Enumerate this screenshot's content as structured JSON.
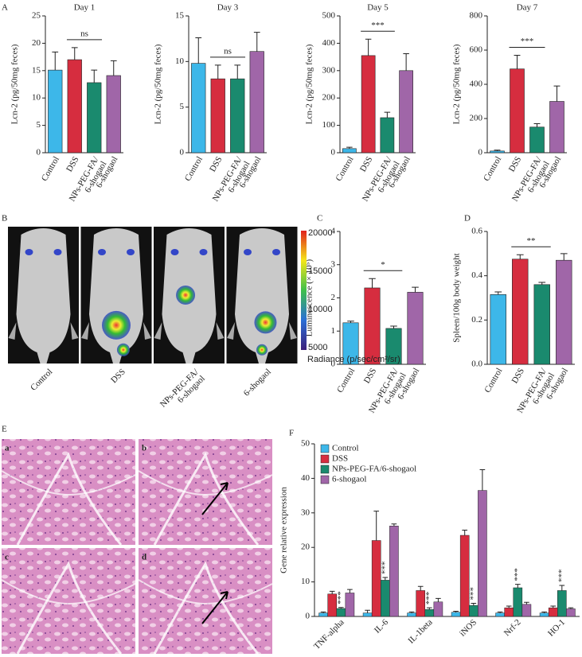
{
  "panel_labels": [
    "A",
    "B",
    "C",
    "D",
    "E",
    "F"
  ],
  "imaging": {
    "labels": [
      "Control",
      "DSS",
      "NPs-PEG-FA/6-shogaol",
      "6-shogaol"
    ],
    "colorbar_ticks": [
      "20000",
      "15000",
      "10000",
      "5000"
    ],
    "colorbar_title": "Radiance (p/sec/cm²/sr)"
  },
  "histology": {
    "labels": [
      "a",
      "b",
      "c",
      "d"
    ]
  },
  "chart_data": [
    {
      "type": "bar",
      "title": "Day 1",
      "y_label": "Lcn-2 (pg/50mg feces)",
      "categories": [
        "Control",
        "DSS",
        "NPs-PEG-FA/6-shogaol",
        "6-shogaol"
      ],
      "values": [
        15.1,
        17,
        12.8,
        14.1
      ],
      "errors": [
        3.3,
        2.2,
        2.3,
        2.7
      ],
      "colors": [
        "#3db7e9",
        "#d62d3f",
        "#1a8a6e",
        "#a066a8"
      ],
      "ylim": [
        0,
        25
      ],
      "yticks": [
        0,
        5,
        10,
        15,
        20,
        25
      ],
      "significance": "ns"
    },
    {
      "type": "bar",
      "title": "Day 3",
      "y_label": "Lcn-2 (pg/50mg feces)",
      "categories": [
        "Control",
        "DSS",
        "NPs-PEG-FA/6-shogaol",
        "6-shogaol"
      ],
      "values": [
        9.8,
        8.1,
        8.1,
        11.1
      ],
      "errors": [
        2.8,
        1.5,
        1.5,
        2.1
      ],
      "colors": [
        "#3db7e9",
        "#d62d3f",
        "#1a8a6e",
        "#a066a8"
      ],
      "ylim": [
        0,
        15
      ],
      "yticks": [
        0,
        5,
        10,
        15
      ],
      "significance": "ns"
    },
    {
      "type": "bar",
      "title": "Day 5",
      "y_label": "Lcn-2 (pg/50mg feces)",
      "categories": [
        "Control",
        "DSS",
        "NPs-PEG-FA/6-shogaol",
        "6-shogaol"
      ],
      "values": [
        15,
        355,
        128,
        300
      ],
      "errors": [
        5,
        60,
        20,
        62
      ],
      "colors": [
        "#3db7e9",
        "#d62d3f",
        "#1a8a6e",
        "#a066a8"
      ],
      "ylim": [
        0,
        500
      ],
      "yticks": [
        0,
        100,
        200,
        300,
        400,
        500
      ],
      "significance": "***"
    },
    {
      "type": "bar",
      "title": "Day 7",
      "y_label": "Lcn-2 (pg/50mg feces)",
      "categories": [
        "Control",
        "DSS",
        "NPs-PEG-FA/6-shogaol",
        "6-shogaol"
      ],
      "values": [
        10,
        490,
        150,
        300
      ],
      "errors": [
        5,
        80,
        20,
        90
      ],
      "colors": [
        "#3db7e9",
        "#d62d3f",
        "#1a8a6e",
        "#a066a8"
      ],
      "ylim": [
        0,
        800
      ],
      "yticks": [
        0,
        200,
        400,
        600,
        800
      ],
      "significance": "***"
    },
    {
      "type": "bar",
      "y_label": "Luminescence (× 10⁵)",
      "categories": [
        "Control",
        "DSS",
        "NPs-PEG-FA/6-shogaol",
        "6-shogaol"
      ],
      "values": [
        1.25,
        2.3,
        1.08,
        2.17
      ],
      "errors": [
        0.05,
        0.28,
        0.07,
        0.15
      ],
      "colors": [
        "#3db7e9",
        "#d62d3f",
        "#1a8a6e",
        "#a066a8"
      ],
      "ylim": [
        0,
        4
      ],
      "yticks": [
        0,
        1,
        2,
        3,
        4
      ],
      "significance": "*"
    },
    {
      "type": "bar",
      "y_label": "Spleen/100g body weight",
      "categories": [
        "Control",
        "DSS",
        "NPs-PEG-FA/6-shogaol",
        "6-shogaol"
      ],
      "values": [
        0.315,
        0.475,
        0.36,
        0.47
      ],
      "errors": [
        0.012,
        0.02,
        0.01,
        0.03
      ],
      "colors": [
        "#3db7e9",
        "#d62d3f",
        "#1a8a6e",
        "#a066a8"
      ],
      "ylim": [
        0,
        0.6
      ],
      "yticks": [
        {
          "value": 0,
          "label": "0.0"
        },
        0.2,
        0.4,
        0.6
      ],
      "significance": "**"
    },
    {
      "type": "grouped_bar",
      "y_label": "Gene relative expression",
      "categories": [
        "TNF-alpha",
        "IL-6",
        "IL-1beta",
        "iNOS",
        "Nrf-2",
        "HO-1"
      ],
      "series": [
        {
          "name": "Control",
          "color": "#3db7e9",
          "values": [
            1,
            1,
            1,
            1.2,
            1,
            1
          ],
          "errors": [
            0.3,
            0.8,
            0.3,
            0.3,
            0.3,
            0.3
          ]
        },
        {
          "name": "DSS",
          "color": "#d62d3f",
          "values": [
            6.5,
            22,
            7.5,
            23.5,
            2.5,
            2.5
          ],
          "errors": [
            0.8,
            8.5,
            1.2,
            1.5,
            0.5,
            0.5
          ]
        },
        {
          "name": "NPs-PEG-FA/6-shogaol",
          "color": "#1a8a6e",
          "values": [
            2.3,
            10.5,
            2,
            3.2,
            8.3,
            7.5
          ],
          "errors": [
            0.3,
            0.8,
            0.5,
            0.6,
            1,
            1.5
          ]
        },
        {
          "name": "6-shogaol",
          "color": "#a066a8",
          "values": [
            6.8,
            26.2,
            4.2,
            36.5,
            3.5,
            2.2
          ],
          "errors": [
            1,
            0.6,
            1,
            6,
            0.6,
            0.3
          ]
        }
      ],
      "significance": [
        "***",
        "***",
        "***",
        "***",
        "***",
        "***"
      ],
      "ylim": [
        0,
        50
      ],
      "yticks": [
        0,
        10,
        20,
        30,
        40,
        50
      ],
      "legend": "upper left"
    }
  ]
}
